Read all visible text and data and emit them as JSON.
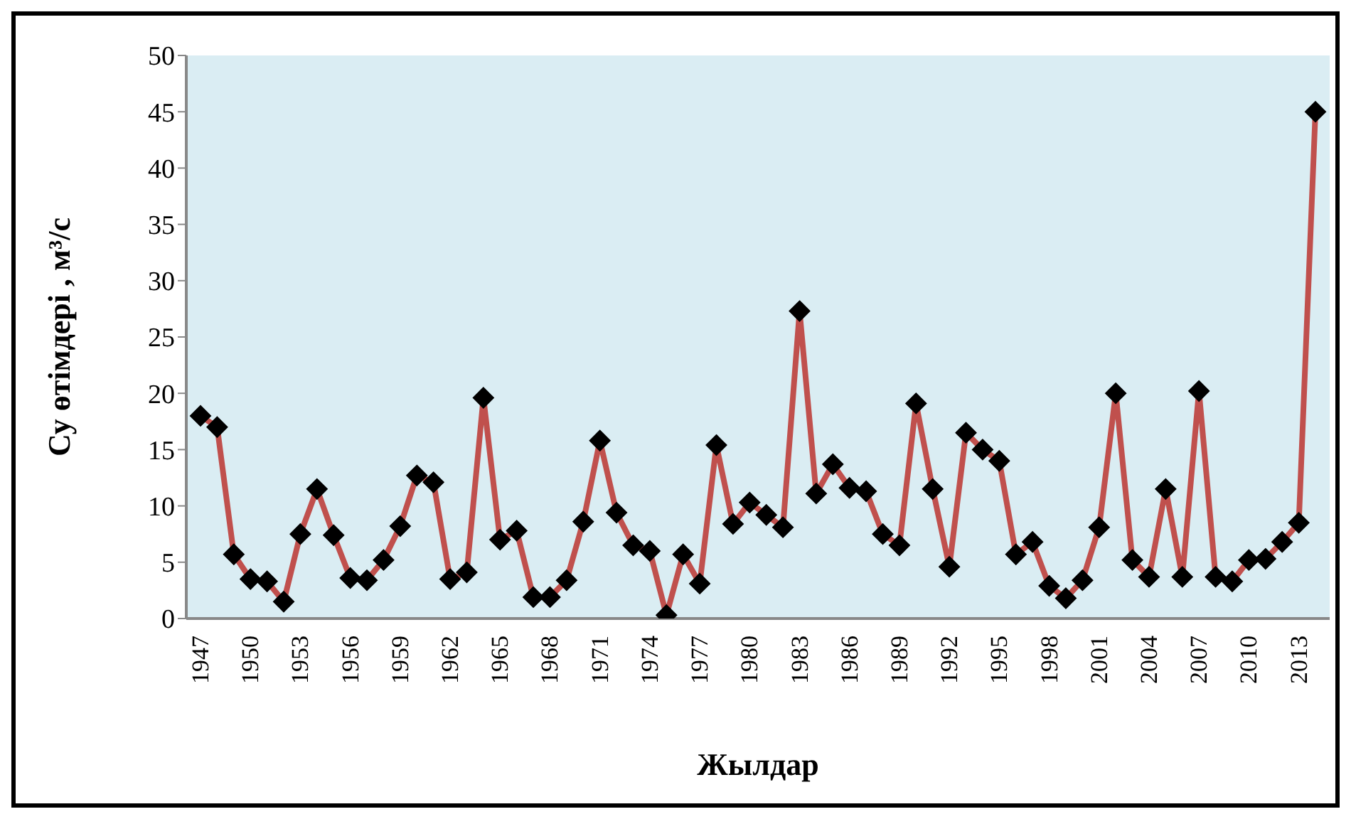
{
  "chart_data": {
    "type": "line",
    "xlabel": "Жылдар",
    "ylabel": "Су өтімдері , м³/с",
    "categories": [
      "1947",
      null,
      null,
      "1950",
      null,
      null,
      "1953",
      null,
      null,
      "1956",
      null,
      null,
      "1959",
      null,
      null,
      "1962",
      null,
      null,
      "1965",
      null,
      null,
      "1968",
      null,
      null,
      "1971",
      null,
      null,
      "1974",
      null,
      null,
      "1977",
      null,
      null,
      "1980",
      null,
      null,
      "1983",
      null,
      null,
      "1986",
      null,
      null,
      "1989",
      null,
      null,
      "1992",
      null,
      null,
      "1995",
      null,
      null,
      "1998",
      null,
      null,
      "2001",
      null,
      null,
      "2004",
      null,
      null,
      "2007",
      null,
      null,
      "2010",
      null,
      null,
      "2013",
      null
    ],
    "series": [
      {
        "color": "#c0504d",
        "values": [
          18,
          17,
          5.7,
          3.5,
          3.3,
          1.5,
          7.5,
          11.5,
          7.4,
          3.6,
          3.4,
          5.2,
          8.2,
          12.7,
          12.1,
          3.5,
          4.1,
          19.6,
          7,
          7.8,
          1.9,
          1.9,
          3.4,
          8.6,
          15.8,
          9.4,
          6.5,
          6,
          0.3,
          5.7,
          3.1,
          15.4,
          8.4,
          10.3,
          9.2,
          8.1,
          27.3,
          11.1,
          13.7,
          11.6,
          11.3,
          7.5,
          6.5,
          19.1,
          11.5,
          4.6,
          16.5,
          15,
          14,
          5.7,
          6.8,
          2.9,
          1.8,
          3.4,
          8.1,
          20,
          5.2,
          3.7,
          11.5,
          3.7,
          20.2,
          3.7,
          3.3,
          5.2,
          5.3,
          6.8,
          8.5,
          45
        ]
      }
    ],
    "ylim": [
      0,
      50
    ],
    "yticks": [
      0,
      5,
      10,
      15,
      20,
      25,
      30,
      35,
      40,
      45,
      50
    ],
    "grid": false,
    "legend": false,
    "marker": "diamond",
    "line_style": "solid"
  }
}
